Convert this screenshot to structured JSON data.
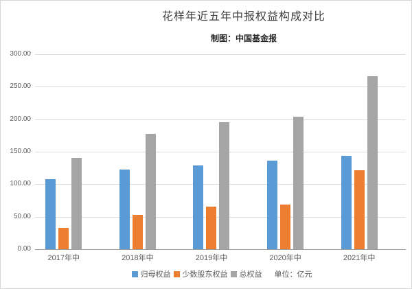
{
  "chart_data": {
    "type": "bar",
    "title": "花样年近五年中报权益构成对比",
    "subtitle": "制图：中国基金报",
    "unit_note": "单位：亿元",
    "categories": [
      "2017年中",
      "2018年中",
      "2019年中",
      "2020年中",
      "2021年中"
    ],
    "series": [
      {
        "name": "归母权益",
        "color": "#5B9BD5",
        "values": [
          108,
          123,
          129,
          136,
          144
        ]
      },
      {
        "name": "少数股东权益",
        "color": "#ED7D31",
        "values": [
          33,
          53,
          66,
          69,
          122
        ]
      },
      {
        "name": "总权益",
        "color": "#A5A5A5",
        "values": [
          140,
          177,
          195,
          204,
          266
        ]
      }
    ],
    "ylim": [
      0,
      300
    ],
    "ytick_step": 50,
    "ytick_labels": [
      "0.00",
      "50.00",
      "100.00",
      "150.00",
      "200.00",
      "250.00",
      "300.00"
    ],
    "xlabel": "",
    "ylabel": "",
    "grid": true,
    "legend_position": "bottom"
  },
  "style": {
    "grid_color": "#dcdcdc",
    "axis_line_color": "#9e9e9e",
    "tick_text_color": "#595959",
    "title_color": "#3f3f3f",
    "subtitle_color": "#262626",
    "background": "#ffffff"
  }
}
